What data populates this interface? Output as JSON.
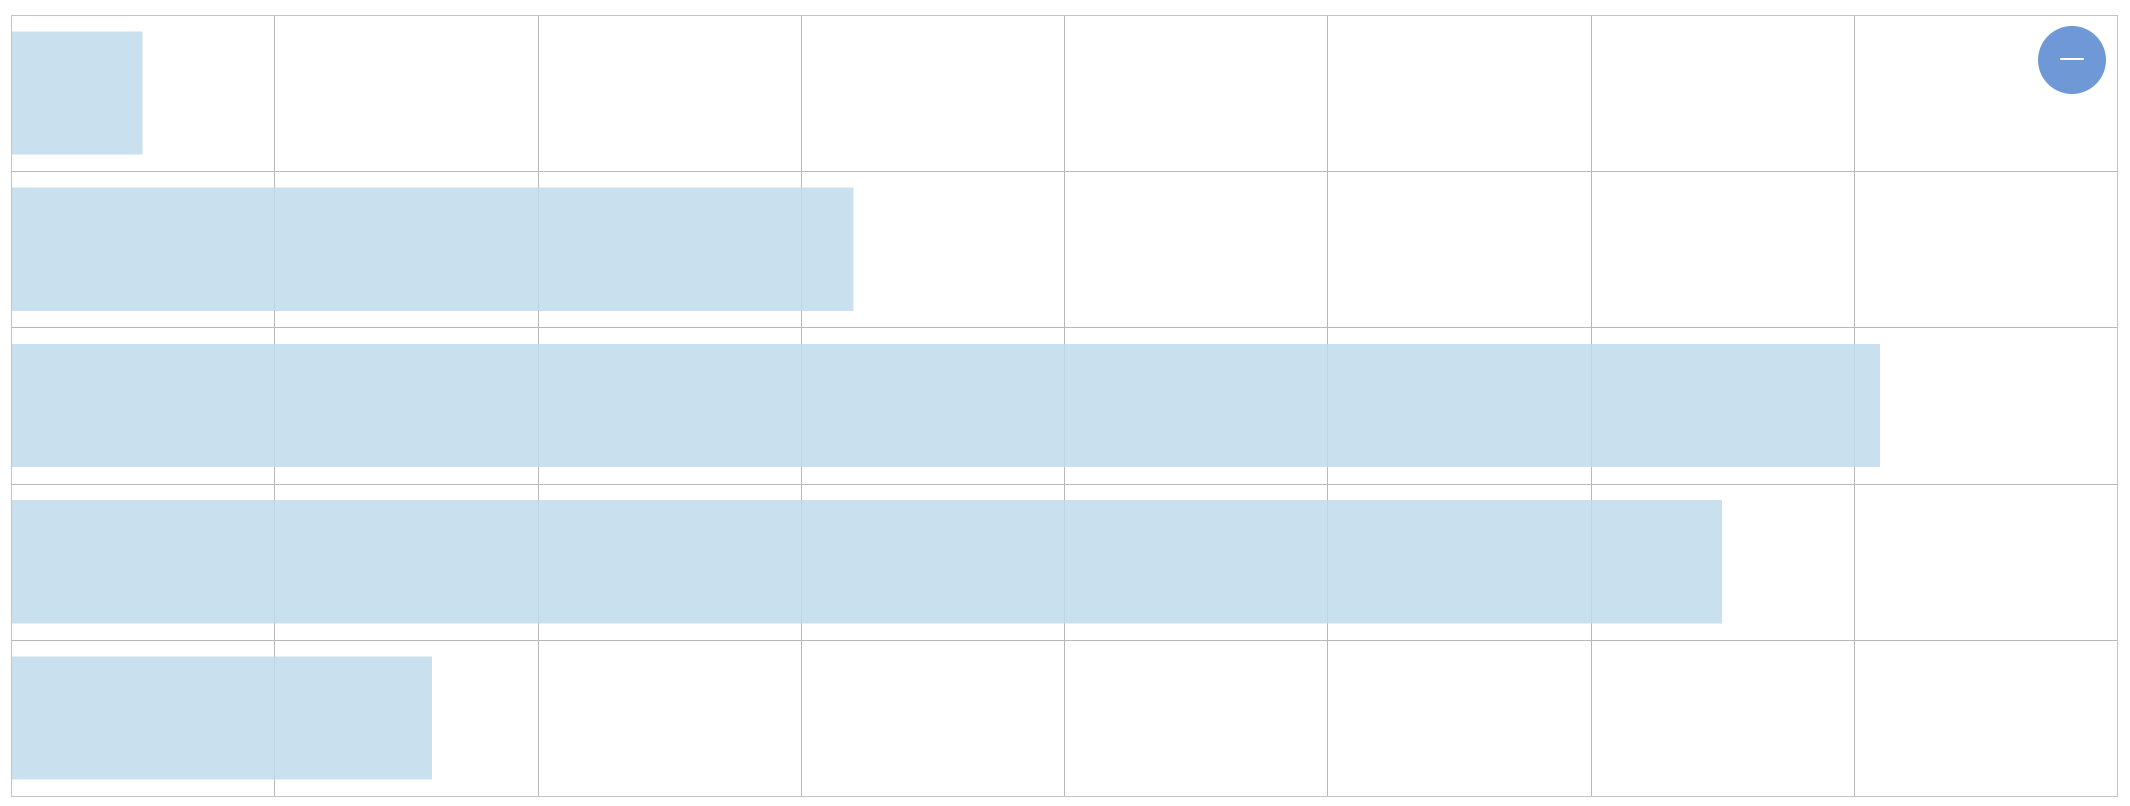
{
  "chart_data": {
    "type": "bar",
    "orientation": "horizontal",
    "categories": [
      "",
      "",
      "",
      "",
      ""
    ],
    "values": [
      0.5,
      3.2,
      7.1,
      6.5,
      1.6
    ],
    "xlim": [
      0,
      8
    ],
    "x_gridlines_every": 1,
    "row_separators": true,
    "tick_labels_shown": false,
    "title": "",
    "xlabel": "",
    "ylabel": "",
    "grid": true,
    "legend": "none",
    "colors": {
      "bar": "#bfdbeb",
      "grid": "#b8b8b8",
      "frame": "#c4c4c4",
      "control": "#6f98d6"
    }
  },
  "controls": {
    "zoom_button_icon": "minus-icon"
  }
}
